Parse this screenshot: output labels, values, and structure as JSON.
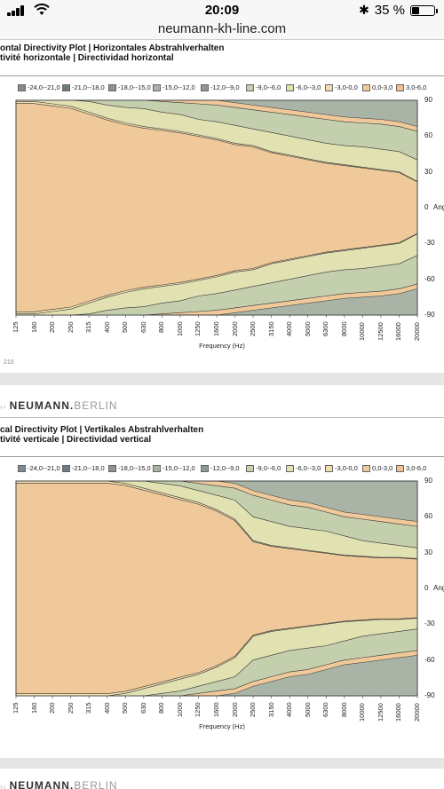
{
  "status": {
    "time": "20:09",
    "battery": "35 %",
    "battery_level": 0.35
  },
  "browser": {
    "url": "neumann-kh-line.com"
  },
  "sheet1": {
    "title_line1": "ontal Directivity Plot | Horizontales Abstrahlverhalten",
    "title_line2": "tivité horizontale | Directividad horizontal",
    "page_number": "210"
  },
  "sheet2": {
    "brand_prefix": "NEUMANN.",
    "brand_suffix": "BERLIN",
    "title_line1": "cal Directivity Plot | Vertikales Abstrahlverhalten",
    "title_line2": "tivité verticale | Directividad vertical"
  },
  "sheet3": {
    "brand_prefix": "NEUMANN.",
    "brand_suffix": "BERLIN"
  },
  "chart_data": [
    {
      "type": "heatmap",
      "title": "",
      "xlabel": "Frequency (Hz)",
      "ylabel": "Ang",
      "x_scale": "log",
      "x_categories": [
        "125",
        "160",
        "200",
        "250",
        "315",
        "400",
        "500",
        "630",
        "800",
        "1000",
        "1250",
        "1600",
        "2000",
        "2500",
        "3150",
        "4000",
        "5000",
        "6300",
        "8000",
        "10000",
        "12500",
        "16000",
        "20000"
      ],
      "y_ticks": [
        90,
        60,
        30,
        0,
        -30,
        -60,
        -90
      ],
      "ylim": [
        -90,
        90
      ],
      "legend": [
        {
          "label": "-24,0--21,0",
          "color": "#7f8a92"
        },
        {
          "label": "-21,0--18,0",
          "color": "#6d7a80"
        },
        {
          "label": "-18,0--15,0",
          "color": "#8a968c"
        },
        {
          "label": "-15,0--12,0",
          "color": "#a9b3a6"
        },
        {
          "label": "-12,0--9,0",
          "color": "#8d9a94"
        },
        {
          "label": "-9,0--6,0",
          "color": "#c4cfae"
        },
        {
          "label": "-6,0--3,0",
          "color": "#e2e1b2"
        },
        {
          "label": "-3,0-0,0",
          "color": "#f0dfae"
        },
        {
          "label": "0,0-3,0",
          "color": "#f0c99a"
        },
        {
          "label": "3,0-6,0",
          "color": "#f3c093"
        }
      ],
      "contour_bands_db": [
        {
          "level": "-3,0-0,0",
          "upper_angle_by_freq": [
            89,
            89,
            87,
            85,
            80,
            75,
            71,
            68,
            66,
            64,
            61,
            58,
            54,
            52,
            47,
            44,
            41,
            38,
            36,
            34,
            32,
            30,
            22
          ]
        },
        {
          "level": "-6,0--3,0",
          "upper_angle_by_freq": [
            90,
            90,
            90,
            90,
            89,
            86,
            84,
            83,
            80,
            78,
            74,
            72,
            69,
            66,
            63,
            60,
            57,
            54,
            52,
            51,
            49,
            47,
            40
          ]
        },
        {
          "level": "-9,0--6,0",
          "upper_angle_by_freq": [
            90,
            90,
            90,
            90,
            90,
            90,
            90,
            90,
            89,
            88,
            87,
            86,
            84,
            82,
            80,
            78,
            76,
            74,
            72,
            71,
            70,
            68,
            64
          ]
        }
      ]
    },
    {
      "type": "heatmap",
      "title": "",
      "xlabel": "Frequency (Hz)",
      "ylabel": "Ang",
      "x_scale": "log",
      "x_categories": [
        "125",
        "160",
        "200",
        "250",
        "315",
        "400",
        "500",
        "630",
        "800",
        "1000",
        "1250",
        "1600",
        "2000",
        "2500",
        "3150",
        "4000",
        "5000",
        "6300",
        "8000",
        "10000",
        "12500",
        "16000",
        "20000"
      ],
      "y_ticks": [
        90,
        60,
        30,
        0,
        -30,
        -60,
        -90
      ],
      "ylim": [
        -90,
        90
      ],
      "legend": [
        {
          "label": "-24,0--21,0",
          "color": "#7f8a92"
        },
        {
          "label": "-21,0--18,0",
          "color": "#6d7a80"
        },
        {
          "label": "-18,0--15,0",
          "color": "#8a968c"
        },
        {
          "label": "-15,0--12,0",
          "color": "#a9b3a6"
        },
        {
          "label": "-12,0--9,0",
          "color": "#8d9a94"
        },
        {
          "label": "-9,0--6,0",
          "color": "#c4cfae"
        },
        {
          "label": "-6,0--3,0",
          "color": "#e2e1b2"
        },
        {
          "label": "-3,0-0,0",
          "color": "#f0dfae"
        },
        {
          "label": "0,0-3,0",
          "color": "#f0c99a"
        },
        {
          "label": "3,0-6,0",
          "color": "#f3c093"
        }
      ],
      "contour_bands_db": [
        {
          "level": "-3,0-0,0",
          "upper_angle_by_freq": [
            90,
            90,
            90,
            90,
            90,
            90,
            88,
            84,
            80,
            76,
            72,
            66,
            58,
            40,
            36,
            34,
            32,
            30,
            28,
            27,
            26,
            26,
            25
          ]
        },
        {
          "level": "-6,0--3,0",
          "upper_angle_by_freq": [
            90,
            90,
            90,
            90,
            90,
            90,
            90,
            90,
            88,
            86,
            82,
            78,
            74,
            60,
            56,
            52,
            50,
            48,
            44,
            40,
            38,
            36,
            34
          ]
        },
        {
          "level": "-9,0--6,0",
          "upper_angle_by_freq": [
            90,
            90,
            90,
            90,
            90,
            90,
            90,
            90,
            90,
            90,
            88,
            86,
            84,
            78,
            74,
            70,
            68,
            64,
            60,
            58,
            56,
            54,
            52
          ]
        }
      ]
    }
  ]
}
